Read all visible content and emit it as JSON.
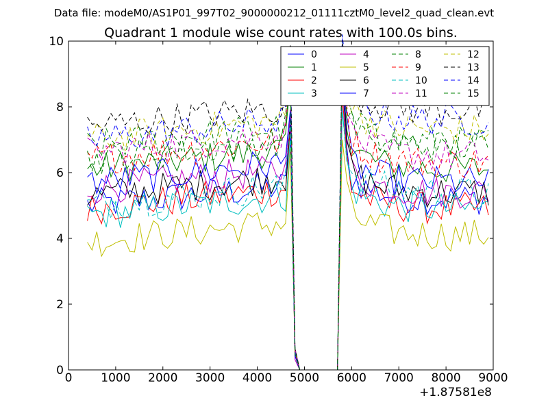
{
  "chart_data": {
    "type": "line",
    "suptitle": "Data file: modeM0/AS1P01_997T02_9000000212_01111cztM0_level2_quad_clean.evt",
    "title": "Quadrant 1 module wise count rates with 100.0s bins.",
    "xlabel": "",
    "ylabel": "",
    "x_offset_label": "+1.87581e8",
    "xlim": [
      0,
      9000
    ],
    "ylim": [
      0,
      10
    ],
    "xticks": [
      0,
      1000,
      2000,
      3000,
      4000,
      5000,
      6000,
      7000,
      8000,
      9000
    ],
    "yticks": [
      0,
      2,
      4,
      6,
      8,
      10
    ],
    "xtick_labels": [
      "0",
      "1000",
      "2000",
      "3000",
      "4000",
      "5000",
      "6000",
      "7000",
      "8000",
      "9000"
    ],
    "ytick_labels": [
      "0",
      "2",
      "4",
      "6",
      "8",
      "10"
    ],
    "legend_position": "top-right",
    "legend_columns": 4,
    "x": [
      400,
      500,
      600,
      700,
      800,
      900,
      1000,
      1100,
      1200,
      1300,
      1400,
      1500,
      1600,
      1700,
      1800,
      1900,
      2000,
      2100,
      2200,
      2300,
      2400,
      2500,
      2600,
      2700,
      2800,
      2900,
      3000,
      3100,
      3200,
      3300,
      3400,
      3500,
      3600,
      3700,
      3800,
      3900,
      4000,
      4100,
      4200,
      4300,
      4400,
      4500,
      4600,
      4700,
      4800,
      4900,
      5000,
      5100,
      5200,
      5300,
      5400,
      5500,
      5600,
      5700,
      5800,
      5900,
      6000,
      6100,
      6200,
      6300,
      6400,
      6500,
      6600,
      6700,
      6800,
      6900,
      7000,
      7100,
      7200,
      7300,
      7400,
      7500,
      7600,
      7700,
      7800,
      7900,
      8000,
      8100,
      8200,
      8300,
      8400,
      8500,
      8600,
      8700,
      8800,
      8900
    ],
    "series": [
      {
        "name": "0",
        "color": "#0000ff",
        "dash": "solid",
        "base": 5.0,
        "endLevel": 5.2
      },
      {
        "name": "1",
        "color": "#008000",
        "dash": "solid",
        "base": 6.1,
        "endLevel": 6.1
      },
      {
        "name": "2",
        "color": "#ff0000",
        "dash": "solid",
        "base": 4.9,
        "endLevel": 4.9
      },
      {
        "name": "3",
        "color": "#00bfbf",
        "dash": "solid",
        "base": 4.7,
        "endLevel": 4.9
      },
      {
        "name": "4",
        "color": "#bf00bf",
        "dash": "solid",
        "base": 5.5,
        "endLevel": 5.4
      },
      {
        "name": "5",
        "color": "#bfbf00",
        "dash": "solid",
        "base": 3.9,
        "endLevel": 4.1
      },
      {
        "name": "6",
        "color": "#000000",
        "dash": "solid",
        "base": 5.3,
        "endLevel": 5.4
      },
      {
        "name": "7",
        "color": "#0000ff",
        "dash": "solid",
        "base": 5.7,
        "endLevel": 5.7
      },
      {
        "name": "8",
        "color": "#008000",
        "dash": "dashed",
        "base": 6.8,
        "endLevel": 6.9
      },
      {
        "name": "9",
        "color": "#ff0000",
        "dash": "dashed",
        "base": 6.4,
        "endLevel": 6.3
      },
      {
        "name": "10",
        "color": "#00bfbf",
        "dash": "dashed",
        "base": 5.0,
        "endLevel": 5.4
      },
      {
        "name": "11",
        "color": "#bf00bf",
        "dash": "dashed",
        "base": 6.6,
        "endLevel": 6.5
      },
      {
        "name": "12",
        "color": "#bfbf00",
        "dash": "dashed",
        "base": 7.0,
        "endLevel": 7.3
      },
      {
        "name": "13",
        "color": "#000000",
        "dash": "dashed",
        "base": 7.4,
        "endLevel": 7.9
      },
      {
        "name": "14",
        "color": "#0000ff",
        "dash": "dashed",
        "base": 7.0,
        "endLevel": 7.6
      },
      {
        "name": "15",
        "color": "#008000",
        "dash": "dashed",
        "base": 6.4,
        "endLevel": 6.8
      }
    ],
    "dip": {
      "start": 4800,
      "end": 5700,
      "description": "all modules drop to ~0 between x≈4800 and x≈5700, with peaks ≈9–10 at the edges"
    }
  }
}
